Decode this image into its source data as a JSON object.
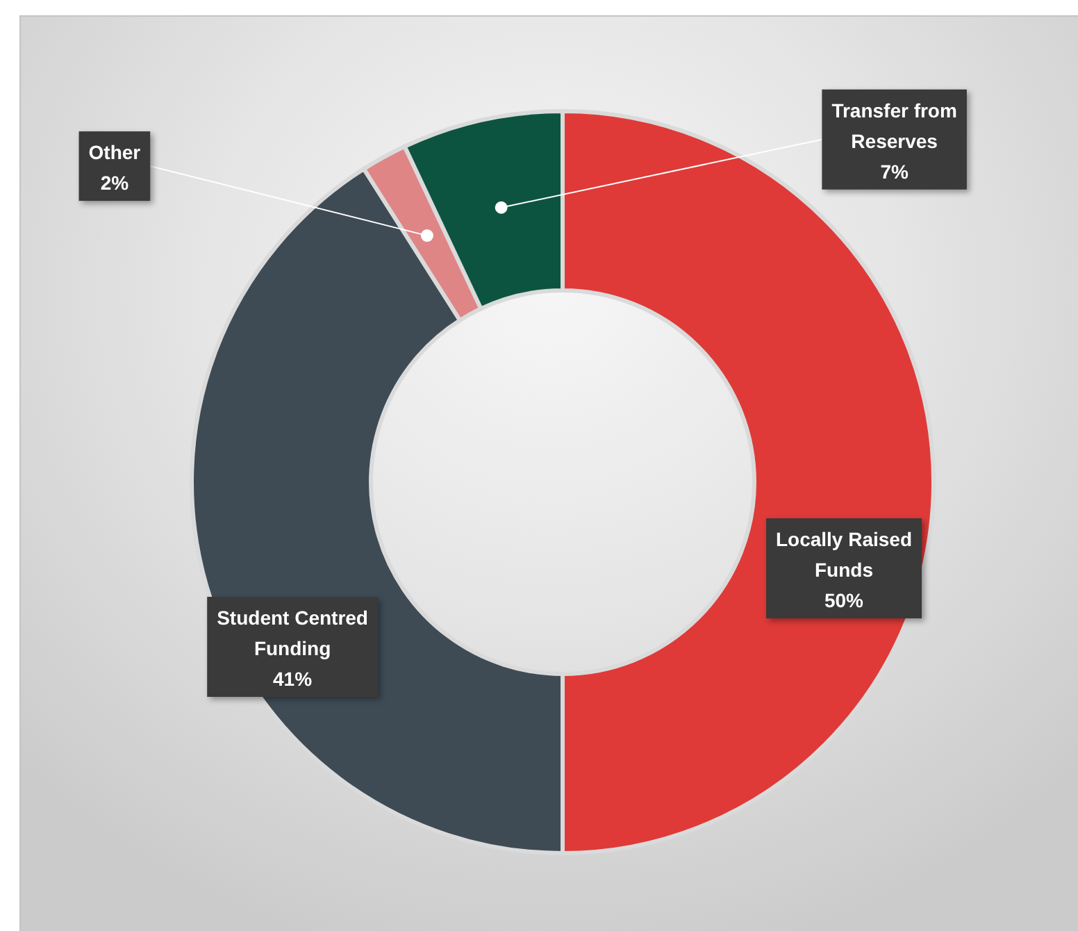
{
  "chart_data": {
    "type": "donut",
    "categories": [
      "Locally Raised Funds",
      "Student Centred Funding",
      "Other",
      "Transfer from Reserves"
    ],
    "values": [
      50,
      41,
      2,
      7
    ],
    "colors": [
      "#df3a38",
      "#3e4b55",
      "#df8586",
      "#0c5440"
    ],
    "value_labels": [
      "50%",
      "41%",
      "2%",
      "7%"
    ]
  }
}
